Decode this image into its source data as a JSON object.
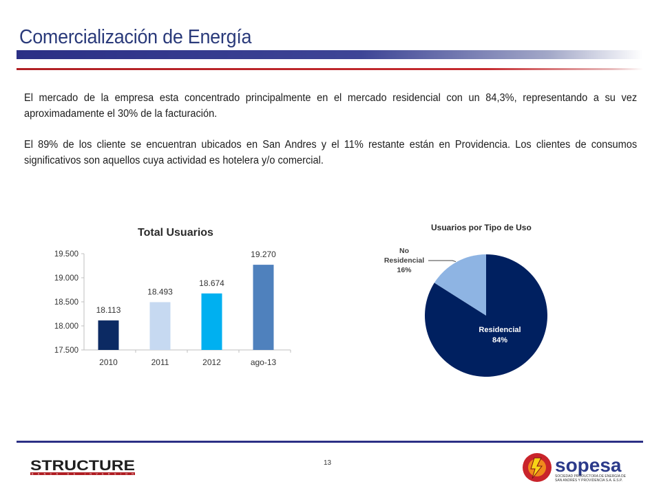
{
  "header": {
    "title": "Comercialización de Energía"
  },
  "body": {
    "paragraph1": "El mercado de la empresa esta concentrado principalmente en el mercado residencial con un 84,3%, representando a su vez aproximadamente el 30% de la facturación.",
    "paragraph2": "El 89% de los cliente se encuentran ubicados en San Andres y el 11% restante están en Providencia. Los clientes de consumos significativos son aquellos cuya actividad es hotelera y/o comercial."
  },
  "chart_data": [
    {
      "type": "bar",
      "title": "Total Usuarios",
      "categories": [
        "2010",
        "2011",
        "2012",
        "ago-13"
      ],
      "values": [
        18113,
        18493,
        18674,
        19270
      ],
      "value_labels": [
        "18.113",
        "18.493",
        "18.674",
        "19.270"
      ],
      "colors": [
        "#0c2a63",
        "#c6d9f1",
        "#00b0f0",
        "#4f81bd"
      ],
      "ylim": [
        17500,
        19500
      ],
      "yticks": [
        17500,
        18000,
        18500,
        19000,
        19500
      ],
      "ytick_labels": [
        "17.500",
        "18.000",
        "18.500",
        "19.000",
        "19.500"
      ],
      "grid": false
    },
    {
      "type": "pie",
      "title": "Usuarios por Tipo de Uso",
      "slices": [
        {
          "label": "Residencial",
          "value": 84,
          "value_label": "84%",
          "color": "#002060"
        },
        {
          "label": "No Residencial",
          "value": 16,
          "value_label": "16%",
          "color": "#8eb4e3"
        }
      ]
    }
  ],
  "footer": {
    "page_number": "13",
    "left_logo": {
      "text": "STRUCTURE",
      "tagline": "BANCA DE INVERSION"
    },
    "right_logo": {
      "text": "sopesa",
      "tagline_line1": "SOCIEDAD PRODUCTORA DE ENERGÍA DE",
      "tagline_line2": "SAN ANDRÉS Y PROVIDENCIA S.A. E.S.P."
    }
  }
}
